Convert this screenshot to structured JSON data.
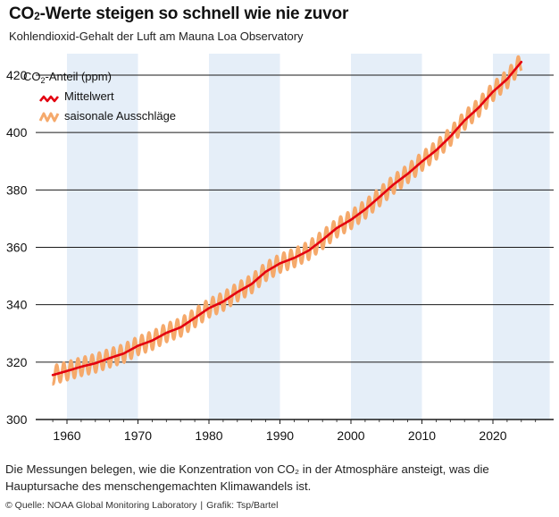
{
  "header": {
    "title_prefix": "CO",
    "title_sub": "2",
    "title_rest": "-Werte steigen so schnell wie nie zuvor",
    "subtitle": "Kohlendioxid-Gehalt der Luft am Mauna Loa Observatory"
  },
  "footer": {
    "caption": "Die Messungen belegen, wie die Konzentration von CO₂ in der Atmosphäre ansteigt, was die Hauptursache des menschengemachten Klimawandels ist.",
    "source": "© Quelle: NOAA Global Monitoring Laboratory",
    "separator": "|",
    "credit": "Grafik: Tsp/Bartel"
  },
  "colors": {
    "mean_line": "#e3000f",
    "seasonal": "#f5a96b",
    "band": "#e5eef8",
    "gridline": "#1a1a1a"
  },
  "chart_data": {
    "type": "line",
    "title": "CO₂-Werte steigen so schnell wie nie zuvor",
    "subtitle": "Kohlendioxid-Gehalt der Luft am Mauna Loa Observatory",
    "xlabel": "",
    "ylabel_prefix": "CO",
    "ylabel_sub": "2",
    "ylabel_rest": "-Anteil (ppm)",
    "xlim": [
      1956,
      2028
    ],
    "ylim": [
      300,
      428
    ],
    "xticks": [
      1960,
      1970,
      1980,
      1990,
      2000,
      2010,
      2020
    ],
    "yticks": [
      300,
      320,
      340,
      360,
      380,
      400,
      420
    ],
    "shaded_decades": [
      [
        1960,
        1970
      ],
      [
        1980,
        1990
      ],
      [
        2000,
        2010
      ],
      [
        2020,
        2028
      ]
    ],
    "legend": {
      "position": "top-left",
      "entries": [
        {
          "label": "Mittelwert",
          "series": "Mittelwert"
        },
        {
          "label": "saisonale Ausschläge",
          "series": "saisonale Ausschläge"
        }
      ]
    },
    "series": [
      {
        "name": "Mittelwert",
        "x": [
          1958,
          1960,
          1962,
          1964,
          1966,
          1968,
          1970,
          1972,
          1974,
          1976,
          1978,
          1980,
          1982,
          1984,
          1986,
          1988,
          1990,
          1992,
          1994,
          1996,
          1998,
          2000,
          2002,
          2004,
          2006,
          2008,
          2010,
          2012,
          2014,
          2016,
          2018,
          2020,
          2022,
          2024
        ],
        "values": [
          315.5,
          316.9,
          318.4,
          319.6,
          321.4,
          323.0,
          325.7,
          327.5,
          330.2,
          332.1,
          335.4,
          338.8,
          341.1,
          344.4,
          347.2,
          351.5,
          354.4,
          356.3,
          358.8,
          362.6,
          366.7,
          369.6,
          373.2,
          377.5,
          381.9,
          385.6,
          389.9,
          393.8,
          398.6,
          404.2,
          408.7,
          414.2,
          418.6,
          424.6
        ]
      },
      {
        "name": "saisonale Ausschläge",
        "seasonal_amplitude_ppm": 3.2
      }
    ]
  }
}
